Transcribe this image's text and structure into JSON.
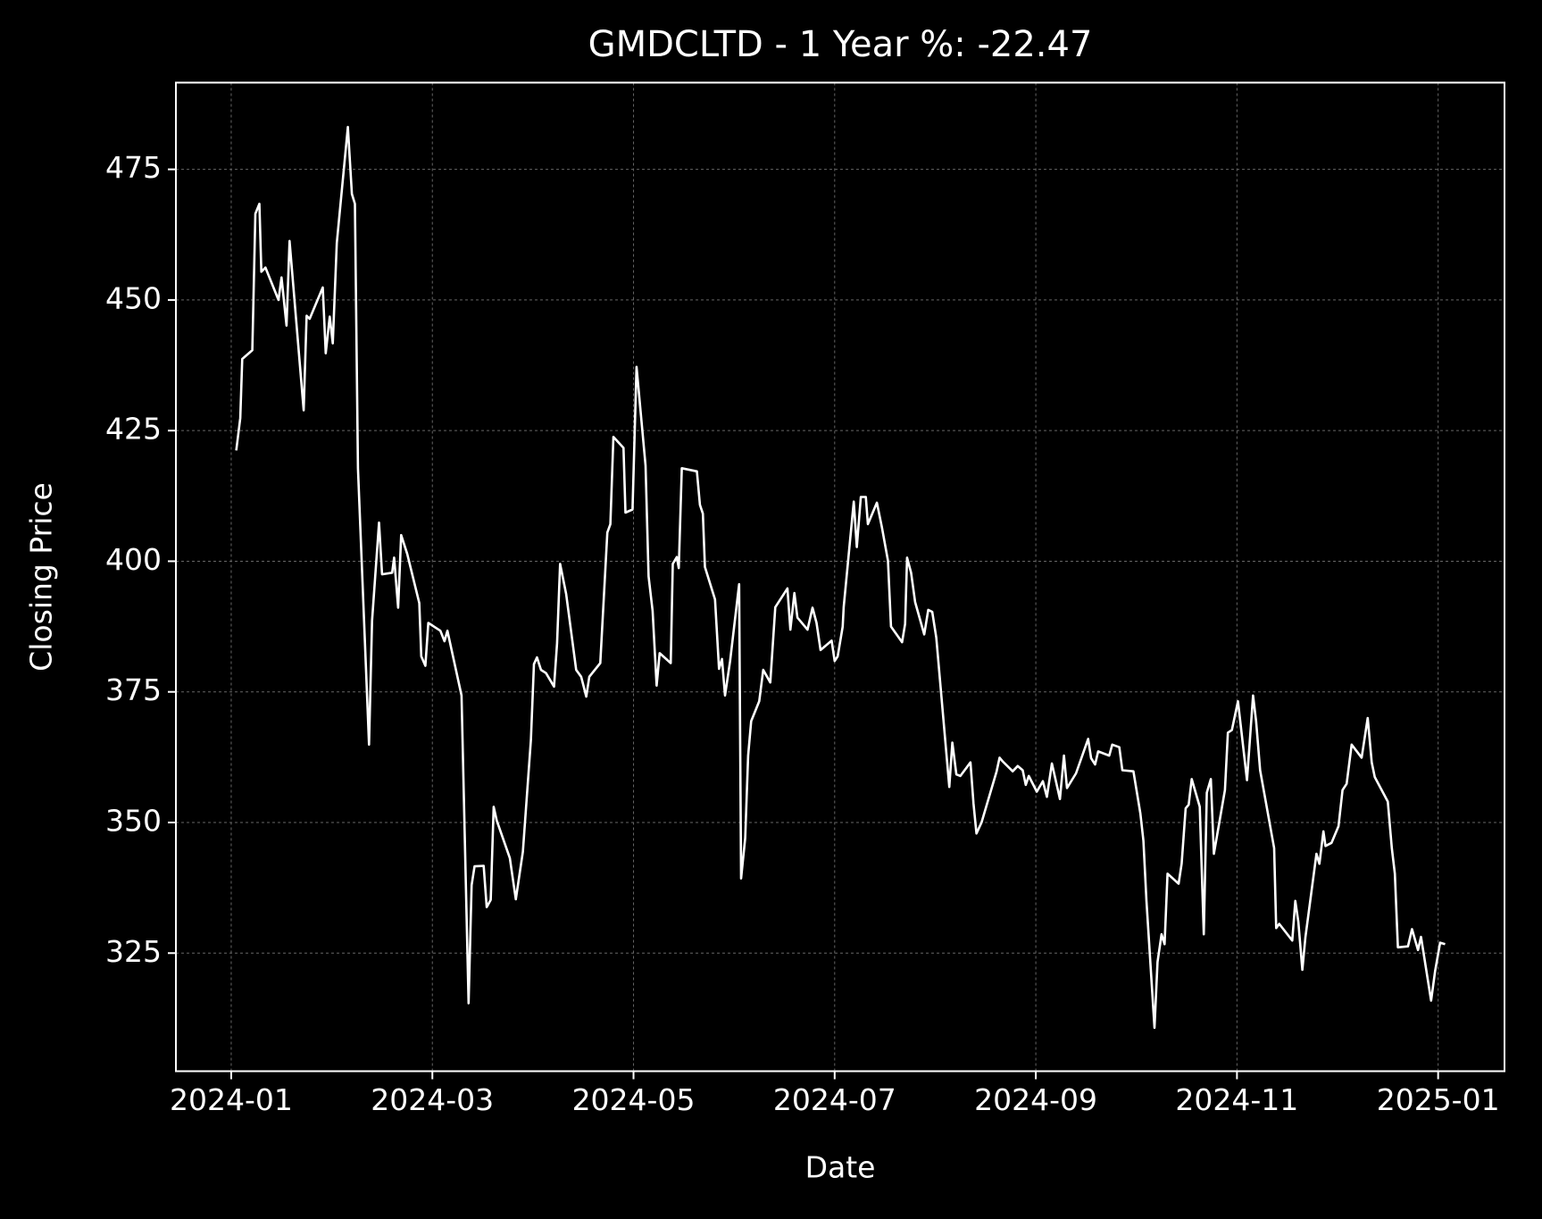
{
  "chart_data": {
    "type": "line",
    "title": "GMDCLTD - 1 Year %: -22.47",
    "xlabel": "Date",
    "ylabel": "Closing Price",
    "background": "#000000",
    "grid": true,
    "xlim": [
      -0.55,
      12.66
    ],
    "ylim": [
      302.4,
      491.6
    ],
    "xticks": [
      {
        "value": 0,
        "label": "2024-01"
      },
      {
        "value": 2,
        "label": "2024-03"
      },
      {
        "value": 4,
        "label": "2024-05"
      },
      {
        "value": 6,
        "label": "2024-07"
      },
      {
        "value": 8,
        "label": "2024-09"
      },
      {
        "value": 10,
        "label": "2024-11"
      },
      {
        "value": 12,
        "label": "2025-01"
      }
    ],
    "yticks": [
      325,
      350,
      375,
      400,
      425,
      450,
      475
    ],
    "x": [
      0.05,
      0.09,
      0.11,
      0.21,
      0.24,
      0.28,
      0.3,
      0.34,
      0.47,
      0.5,
      0.55,
      0.58,
      0.72,
      0.75,
      0.78,
      0.91,
      0.94,
      0.98,
      1.01,
      1.05,
      1.16,
      1.2,
      1.23,
      1.26,
      1.37,
      1.4,
      1.47,
      1.5,
      1.6,
      1.62,
      1.66,
      1.69,
      1.75,
      1.87,
      1.89,
      1.93,
      1.96,
      2.08,
      2.12,
      2.15,
      2.29,
      2.36,
      2.39,
      2.42,
      2.51,
      2.54,
      2.58,
      2.61,
      2.64,
      2.77,
      2.83,
      2.9,
      2.98,
      3.01,
      3.04,
      3.08,
      3.13,
      3.21,
      3.24,
      3.27,
      3.33,
      3.43,
      3.48,
      3.53,
      3.56,
      3.67,
      3.74,
      3.77,
      3.8,
      3.9,
      3.92,
      3.99,
      4.03,
      4.12,
      4.15,
      4.19,
      4.23,
      4.26,
      4.37,
      4.39,
      4.43,
      4.45,
      4.48,
      4.63,
      4.66,
      4.69,
      4.71,
      4.81,
      4.85,
      4.88,
      4.91,
      4.96,
      5.05,
      5.07,
      5.11,
      5.14,
      5.17,
      5.25,
      5.29,
      5.36,
      5.41,
      5.53,
      5.56,
      5.6,
      5.63,
      5.73,
      5.78,
      5.82,
      5.86,
      5.97,
      6.0,
      6.03,
      6.08,
      6.09,
      6.19,
      6.22,
      6.26,
      6.31,
      6.33,
      6.42,
      6.47,
      6.53,
      6.56,
      6.67,
      6.7,
      6.72,
      6.76,
      6.8,
      6.89,
      6.93,
      6.97,
      7.01,
      7.14,
      7.17,
      7.21,
      7.25,
      7.35,
      7.38,
      7.41,
      7.46,
      7.61,
      7.64,
      7.67,
      7.77,
      7.82,
      7.87,
      7.9,
      7.93,
      8.01,
      8.07,
      8.11,
      8.16,
      8.24,
      8.28,
      8.31,
      8.4,
      8.52,
      8.55,
      8.59,
      8.62,
      8.73,
      8.76,
      8.83,
      8.86,
      8.97,
      9.04,
      9.07,
      9.1,
      9.18,
      9.21,
      9.25,
      9.28,
      9.31,
      9.42,
      9.45,
      9.49,
      9.52,
      9.55,
      9.63,
      9.67,
      9.7,
      9.74,
      9.77,
      9.88,
      9.91,
      9.95,
      10.01,
      10.1,
      10.16,
      10.19,
      10.23,
      10.37,
      10.39,
      10.42,
      10.55,
      10.58,
      10.61,
      10.65,
      10.68,
      10.79,
      10.82,
      10.86,
      10.88,
      10.94,
      11.01,
      11.05,
      11.09,
      11.14,
      11.24,
      11.3,
      11.34,
      11.37,
      11.5,
      11.54,
      11.57,
      11.6,
      11.7,
      11.74,
      11.8,
      11.83,
      11.93,
      11.97,
      12.02,
      12.07
    ],
    "series": [
      {
        "color": "#ffffff",
        "values": [
          421.2,
          427.4,
          438.7,
          440.4,
          466.5,
          468.4,
          455.4,
          456.2,
          450,
          454.3,
          445.1,
          461.3,
          428.9,
          447,
          446.4,
          452.4,
          439.8,
          446.8,
          441.7,
          460.9,
          483.1,
          470.3,
          468.4,
          417.8,
          364.9,
          388.6,
          407.4,
          397.5,
          397.8,
          400.7,
          391.1,
          405,
          401.4,
          392,
          381.8,
          380,
          388.2,
          386.7,
          384.7,
          386.7,
          374.3,
          315.4,
          338,
          341.6,
          341.7,
          333.8,
          335.2,
          353,
          350.4,
          343.2,
          335.3,
          344.4,
          365.8,
          380.3,
          381.6,
          379.2,
          378.6,
          376,
          384.3,
          399.5,
          393.7,
          379.2,
          377.9,
          374.1,
          377.9,
          380.5,
          405.5,
          407.1,
          423.8,
          421.7,
          409.3,
          409.9,
          437.2,
          418.3,
          397.1,
          390.5,
          376.2,
          382.4,
          380.5,
          399.5,
          400.8,
          398.7,
          417.8,
          417.2,
          410.8,
          409.1,
          398.9,
          392.7,
          379.4,
          381.3,
          374.3,
          380.9,
          395.6,
          339.3,
          347,
          362.8,
          369.4,
          373.2,
          379.2,
          376.8,
          391.2,
          394.8,
          386.9,
          393.9,
          389.2,
          386.9,
          391.1,
          388.2,
          383,
          384.8,
          380.9,
          381.8,
          387.5,
          391.2,
          411.4,
          402.7,
          412.3,
          412.3,
          407.1,
          411.2,
          406.5,
          400.1,
          387.5,
          384.5,
          388,
          400.7,
          397.8,
          392.2,
          386,
          390.7,
          390.3,
          385.4,
          356.8,
          365.3,
          359.2,
          358.9,
          361.5,
          353.6,
          347.9,
          350,
          359.8,
          362.4,
          361.7,
          359.8,
          360.8,
          360,
          357.2,
          358.9,
          355.9,
          357.9,
          354.9,
          361.3,
          354.5,
          362.8,
          356.6,
          359.4,
          366,
          362.3,
          361.1,
          363.6,
          362.8,
          364.9,
          364.4,
          360,
          359.8,
          351.7,
          346.5,
          335,
          310.7,
          323.3,
          328.6,
          326.7,
          340.2,
          338.3,
          342.1,
          352.7,
          353.4,
          358.3,
          353,
          328.6,
          355.7,
          358.3,
          344,
          356.2,
          367.2,
          367.7,
          373.2,
          358.1,
          374.3,
          369.4,
          360,
          345.1,
          329.8,
          330.6,
          327.4,
          335,
          331,
          321.8,
          328,
          344,
          342.1,
          348.3,
          345.5,
          346.1,
          349.3,
          356.2,
          357.4,
          364.9,
          362.4,
          370,
          361.5,
          358.7,
          354,
          345.1,
          340.2,
          326.1,
          326.3,
          329.6,
          325.6,
          328.1,
          315.9,
          321.6,
          327,
          326.7
        ]
      }
    ]
  }
}
